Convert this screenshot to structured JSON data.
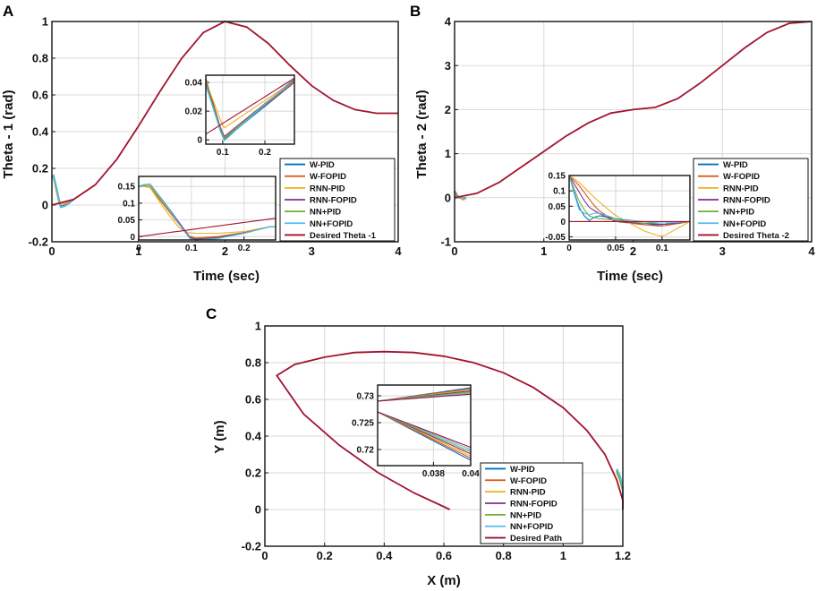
{
  "chart_data": [
    {
      "panel": "A",
      "type": "line",
      "xlabel": "Time (sec)",
      "ylabel": "Theta - 1 (rad)",
      "xlim": [
        0,
        4
      ],
      "ylim": [
        -0.2,
        1
      ],
      "xticks": [
        0,
        1,
        2,
        3,
        4
      ],
      "yticks": [
        -0.2,
        0,
        0.2,
        0.4,
        0.6,
        0.8,
        1
      ],
      "xtick_labels": [
        "0",
        "1",
        "2",
        "3",
        "4"
      ],
      "ytick_labels": [
        "-0.2",
        "0",
        "0.2",
        "0.4",
        "0.6",
        "0.8",
        "1"
      ],
      "legend": [
        "W-PID",
        "W-FOPID",
        "RNN-PID",
        "RNN-FOPID",
        "NN+PID",
        "NN+FOPID",
        "Desired Theta -1"
      ],
      "desired": {
        "name": "Desired Theta -1",
        "x": [
          0,
          0.25,
          0.5,
          0.75,
          1,
          1.25,
          1.5,
          1.75,
          2,
          2.25,
          2.5,
          2.75,
          3,
          3.25,
          3.5,
          3.75,
          4
        ],
        "y": [
          0,
          0.03,
          0.11,
          0.25,
          0.43,
          0.62,
          0.8,
          0.94,
          1,
          0.97,
          0.88,
          0.76,
          0.65,
          0.57,
          0.52,
          0.5,
          0.5
        ]
      },
      "controllers": [
        {
          "name": "W-PID",
          "x": [
            0,
            0.02,
            0.05,
            0.08,
            0.1,
            0.15,
            0.2,
            0.25
          ],
          "y": [
            0.15,
            0.16,
            0.1,
            0.03,
            -0.01,
            -0.005,
            0.01,
            0.03
          ]
        },
        {
          "name": "W-FOPID",
          "x": [
            0,
            0.02,
            0.05,
            0.08,
            0.1,
            0.15,
            0.2,
            0.25
          ],
          "y": [
            0.15,
            0.15,
            0.09,
            0.03,
            -0.005,
            0.0,
            0.012,
            0.03
          ]
        },
        {
          "name": "RNN-PID",
          "x": [
            0,
            0.02,
            0.05,
            0.08,
            0.1,
            0.15,
            0.2,
            0.25
          ],
          "y": [
            0.15,
            0.15,
            0.08,
            0.02,
            0.01,
            0.01,
            0.015,
            0.03
          ]
        },
        {
          "name": "RNN-FOPID",
          "x": [
            0,
            0.02,
            0.05,
            0.08,
            0.1,
            0.15,
            0.2,
            0.25
          ],
          "y": [
            0.15,
            0.16,
            0.1,
            0.035,
            -0.008,
            -0.003,
            0.011,
            0.03
          ]
        },
        {
          "name": "NN+PID",
          "x": [
            0,
            0.02,
            0.05,
            0.08,
            0.1,
            0.15,
            0.2,
            0.25
          ],
          "y": [
            0.15,
            0.155,
            0.095,
            0.03,
            -0.01,
            -0.005,
            0.01,
            0.03
          ]
        },
        {
          "name": "NN+FOPID",
          "x": [
            0,
            0.02,
            0.05,
            0.08,
            0.1,
            0.15,
            0.2,
            0.25
          ],
          "y": [
            0.15,
            0.16,
            0.1,
            0.03,
            -0.012,
            -0.006,
            0.01,
            0.03
          ]
        }
      ],
      "insets": [
        {
          "xlim": [
            0.06,
            0.27
          ],
          "ylim": [
            -0.003,
            0.045
          ],
          "xticks": [
            0.1,
            0.2
          ],
          "yticks": [
            0,
            0.02,
            0.04
          ],
          "xtick_labels": [
            "0.1",
            "0.2"
          ],
          "ytick_labels": [
            "0",
            "0.02",
            "0.04"
          ]
        },
        {
          "xlim": [
            0,
            0.26
          ],
          "ylim": [
            -0.01,
            0.18
          ],
          "xticks": [
            0,
            0.1,
            0.2
          ],
          "yticks": [
            0,
            0.05,
            0.1,
            0.15
          ],
          "xtick_labels": [
            "0",
            "0.1",
            "0.2"
          ],
          "ytick_labels": [
            "0",
            "0.05",
            "0.1",
            "0.15"
          ]
        }
      ]
    },
    {
      "panel": "B",
      "type": "line",
      "xlabel": "Time (sec)",
      "ylabel": "Theta - 2 (rad)",
      "xlim": [
        0,
        4
      ],
      "ylim": [
        -1,
        4
      ],
      "xticks": [
        0,
        1,
        2,
        3,
        4
      ],
      "yticks": [
        -1,
        0,
        1,
        2,
        3,
        4
      ],
      "xtick_labels": [
        "0",
        "1",
        "2",
        "3",
        "4"
      ],
      "ytick_labels": [
        "-1",
        "0",
        "1",
        "2",
        "3",
        "4"
      ],
      "legend": [
        "W-PID",
        "W-FOPID",
        "RNN-PID",
        "RNN-FOPID",
        "NN+PID",
        "NN+FOPID",
        "Desired Theta -2"
      ],
      "desired": {
        "name": "Desired Theta -2",
        "x": [
          0,
          0.25,
          0.5,
          0.75,
          1,
          1.25,
          1.5,
          1.75,
          2,
          2.25,
          2.5,
          2.75,
          3,
          3.25,
          3.5,
          3.75,
          4
        ],
        "y": [
          0,
          0.1,
          0.35,
          0.7,
          1.05,
          1.4,
          1.7,
          1.92,
          2,
          2.05,
          2.25,
          2.6,
          3,
          3.4,
          3.75,
          3.96,
          4
        ]
      },
      "controllers": [
        {
          "name": "W-PID",
          "x": [
            0,
            0.01,
            0.02,
            0.03,
            0.05,
            0.08,
            0.1,
            0.13
          ],
          "y": [
            0.15,
            0.05,
            0.0,
            0.02,
            0.01,
            -0.01,
            -0.01,
            0.0
          ]
        },
        {
          "name": "W-FOPID",
          "x": [
            0,
            0.01,
            0.02,
            0.03,
            0.05,
            0.08,
            0.1,
            0.13
          ],
          "y": [
            0.15,
            0.12,
            0.08,
            0.04,
            0.0,
            -0.01,
            -0.015,
            0.0
          ]
        },
        {
          "name": "RNN-PID",
          "x": [
            0,
            0.01,
            0.02,
            0.03,
            0.05,
            0.08,
            0.1,
            0.13
          ],
          "y": [
            0.15,
            0.13,
            0.1,
            0.07,
            0.02,
            -0.03,
            -0.05,
            0.0
          ]
        },
        {
          "name": "RNN-FOPID",
          "x": [
            0,
            0.01,
            0.02,
            0.03,
            0.05,
            0.08,
            0.1,
            0.13
          ],
          "y": [
            0.15,
            0.1,
            0.05,
            0.03,
            0.0,
            -0.005,
            -0.01,
            0.0
          ]
        },
        {
          "name": "NN+PID",
          "x": [
            0,
            0.01,
            0.02,
            0.03,
            0.05,
            0.08,
            0.1,
            0.13
          ],
          "y": [
            0.15,
            0.07,
            0.02,
            0.01,
            0.005,
            -0.005,
            -0.005,
            0.0
          ]
        },
        {
          "name": "NN+FOPID",
          "x": [
            0,
            0.01,
            0.02,
            0.03,
            0.05,
            0.08,
            0.1,
            0.13
          ],
          "y": [
            0.15,
            0.04,
            0.02,
            0.03,
            0.01,
            0.0,
            -0.005,
            0.0
          ]
        }
      ],
      "insets": [
        {
          "xlim": [
            0,
            0.13
          ],
          "ylim": [
            -0.06,
            0.15
          ],
          "xticks": [
            0,
            0.05,
            0.1
          ],
          "yticks": [
            -0.05,
            0,
            0.05,
            0.1,
            0.15
          ],
          "xtick_labels": [
            "0",
            "0.05",
            "0.1"
          ],
          "ytick_labels": [
            "-0.05",
            "0",
            "0.05",
            "0.1",
            "0.15"
          ]
        }
      ]
    },
    {
      "panel": "C",
      "type": "line",
      "xlabel": "X (m)",
      "ylabel": "Y (m)",
      "xlim": [
        0,
        1.2
      ],
      "ylim": [
        -0.2,
        1
      ],
      "xticks": [
        0,
        0.2,
        0.4,
        0.6,
        0.8,
        1,
        1.2
      ],
      "yticks": [
        -0.2,
        0,
        0.2,
        0.4,
        0.6,
        0.8,
        1
      ],
      "xtick_labels": [
        "0",
        "0.2",
        "0.4",
        "0.6",
        "0.8",
        "1",
        "1.2"
      ],
      "ytick_labels": [
        "-0.2",
        "0",
        "0.2",
        "0.4",
        "0.6",
        "0.8",
        "1"
      ],
      "legend": [
        "W-PID",
        "W-FOPID",
        "RNN-PID",
        "RNN-FOPID",
        "NN+PID",
        "NN+FOPID",
        "Desired Path"
      ],
      "desired": {
        "name": "Desired Path",
        "x": [
          0.62,
          0.5,
          0.38,
          0.25,
          0.13,
          0.04,
          0.1,
          0.2,
          0.3,
          0.4,
          0.5,
          0.6,
          0.7,
          0.8,
          0.9,
          1.0,
          1.08,
          1.14,
          1.18,
          1.2,
          1.2
        ],
        "y": [
          0.0,
          0.09,
          0.2,
          0.35,
          0.52,
          0.73,
          0.79,
          0.83,
          0.855,
          0.86,
          0.855,
          0.835,
          0.8,
          0.745,
          0.665,
          0.555,
          0.43,
          0.3,
          0.16,
          0.05,
          0.0
        ]
      },
      "controllers": [
        {
          "name": "W-PID",
          "x": [
            1.18,
            1.19,
            1.2,
            1.2
          ],
          "y": [
            0.22,
            0.18,
            0.12,
            0.0
          ]
        },
        {
          "name": "W-FOPID",
          "x": [
            1.18,
            1.19,
            1.2,
            1.2
          ],
          "y": [
            0.21,
            0.17,
            0.11,
            0.0
          ]
        },
        {
          "name": "RNN-PID",
          "x": [
            1.18,
            1.19,
            1.2,
            1.2
          ],
          "y": [
            0.2,
            0.16,
            0.1,
            0.0
          ]
        },
        {
          "name": "RNN-FOPID",
          "x": [
            1.18,
            1.19,
            1.2,
            1.2
          ],
          "y": [
            0.215,
            0.175,
            0.115,
            0.0
          ]
        },
        {
          "name": "NN+PID",
          "x": [
            1.18,
            1.19,
            1.2,
            1.2
          ],
          "y": [
            0.205,
            0.165,
            0.105,
            0.0
          ]
        },
        {
          "name": "NN+FOPID",
          "x": [
            1.18,
            1.19,
            1.2,
            1.2
          ],
          "y": [
            0.22,
            0.185,
            0.125,
            0.0
          ]
        }
      ],
      "insets": [
        {
          "xlim": [
            0.035,
            0.04
          ],
          "ylim": [
            0.717,
            0.732
          ],
          "xticks": [
            0.038,
            0.04
          ],
          "yticks": [
            0.72,
            0.725,
            0.73
          ],
          "xtick_labels": [
            "0.038",
            "0.04"
          ],
          "ytick_labels": [
            "0.72",
            "0.725",
            "0.73"
          ]
        }
      ]
    }
  ],
  "series_colors": [
    "#0072BD",
    "#D95319",
    "#EDB120",
    "#7E2F8E",
    "#77AC30",
    "#4DBEEE",
    "#A2142F"
  ]
}
